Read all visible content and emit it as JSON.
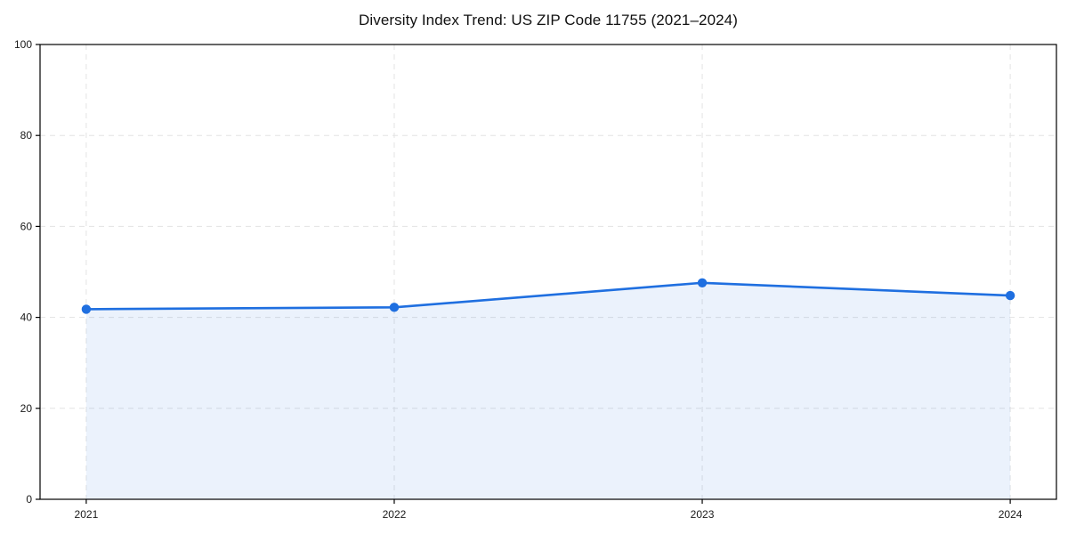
{
  "chart_data": {
    "type": "area",
    "title": "Diversity Index Trend: US ZIP Code 11755 (2021–2024)",
    "categories": [
      "2021",
      "2022",
      "2023",
      "2024"
    ],
    "series": [
      {
        "name": "Diversity Index",
        "values": [
          41.8,
          42.2,
          47.6,
          44.8
        ]
      }
    ],
    "xlabel": "",
    "ylabel": "",
    "ylim": [
      0,
      100
    ],
    "yticks": [
      0,
      20,
      40,
      60,
      80,
      100
    ],
    "grid": true,
    "grid_style": "dashed",
    "legend": false,
    "colors": {
      "line": "#1f6fe0",
      "marker": "#1f6fe0",
      "fill": "#1f6fe0",
      "fill_opacity": 0.09,
      "grid": "#e3e3e3",
      "axis": "#000000",
      "title": "#111111",
      "tick_label": "#1a1a1a",
      "background": "#ffffff"
    }
  }
}
